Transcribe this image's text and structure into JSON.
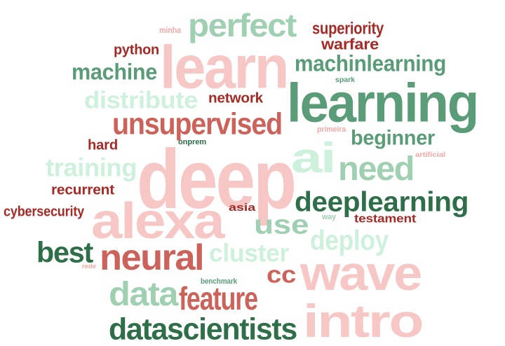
{
  "palette": {
    "light_pink": "#f6c7c5",
    "pink": "#f3a9a5",
    "salmon": "#cd625a",
    "dark_red": "#a52a26",
    "mint": "#cdf1dc",
    "light_green": "#9fd0b2",
    "green": "#5a9c78",
    "dark_green": "#2e6e48"
  },
  "words": [
    {
      "text": "deep",
      "color": "#f6c7c5"
    },
    {
      "text": "learn",
      "color": "#f6c7c5"
    },
    {
      "text": "alexa",
      "color": "#f6c7c5"
    },
    {
      "text": "wave",
      "color": "#f6c7c5"
    },
    {
      "text": "intro",
      "color": "#f6c7c5"
    },
    {
      "text": "learning",
      "color": "#5a9c78"
    },
    {
      "text": "ai",
      "color": "#cdf1dc"
    },
    {
      "text": "perfect",
      "color": "#9fd0b2"
    },
    {
      "text": "unsupervised",
      "color": "#cd625a"
    },
    {
      "text": "deeplearning",
      "color": "#2e6e48"
    },
    {
      "text": "machinlearning",
      "color": "#5a9c78"
    },
    {
      "text": "machine",
      "color": "#5a9c78"
    },
    {
      "text": "distribute",
      "color": "#cdf1dc"
    },
    {
      "text": "network",
      "color": "#a52a26"
    },
    {
      "text": "need",
      "color": "#9fd0b2"
    },
    {
      "text": "beginner",
      "color": "#5a9c78"
    },
    {
      "text": "training",
      "color": "#cdf1dc"
    },
    {
      "text": "neural",
      "color": "#cd625a"
    },
    {
      "text": "best",
      "color": "#2e6e48"
    },
    {
      "text": "use",
      "color": "#9fd0b2"
    },
    {
      "text": "cluster",
      "color": "#cdf1dc"
    },
    {
      "text": "deploy",
      "color": "#cdf1dc"
    },
    {
      "text": "data",
      "color": "#9fd0b2"
    },
    {
      "text": "feature",
      "color": "#cd625a"
    },
    {
      "text": "cc",
      "color": "#cd625a"
    },
    {
      "text": "datascientists",
      "color": "#2e6e48"
    },
    {
      "text": "superiority",
      "color": "#a52a26"
    },
    {
      "text": "warfare",
      "color": "#a52a26"
    },
    {
      "text": "python",
      "color": "#a52a26"
    },
    {
      "text": "hard",
      "color": "#a52a26"
    },
    {
      "text": "recurrent",
      "color": "#a52a26"
    },
    {
      "text": "cybersecurity",
      "color": "#a52a26"
    },
    {
      "text": "asia",
      "color": "#a52a26"
    },
    {
      "text": "testament",
      "color": "#a52a26"
    },
    {
      "text": "minha",
      "color": "#f3a9a5"
    },
    {
      "text": "spark",
      "color": "#5a9c78"
    },
    {
      "text": "primeira",
      "color": "#f3a9a5"
    },
    {
      "text": "artificial",
      "color": "#f3a9a5"
    },
    {
      "text": "onprem",
      "color": "#2e6e48"
    },
    {
      "text": "way",
      "color": "#9fd0b2"
    },
    {
      "text": "rede",
      "color": "#f3a9a5"
    },
    {
      "text": "benchmark",
      "color": "#5a9c78"
    }
  ]
}
